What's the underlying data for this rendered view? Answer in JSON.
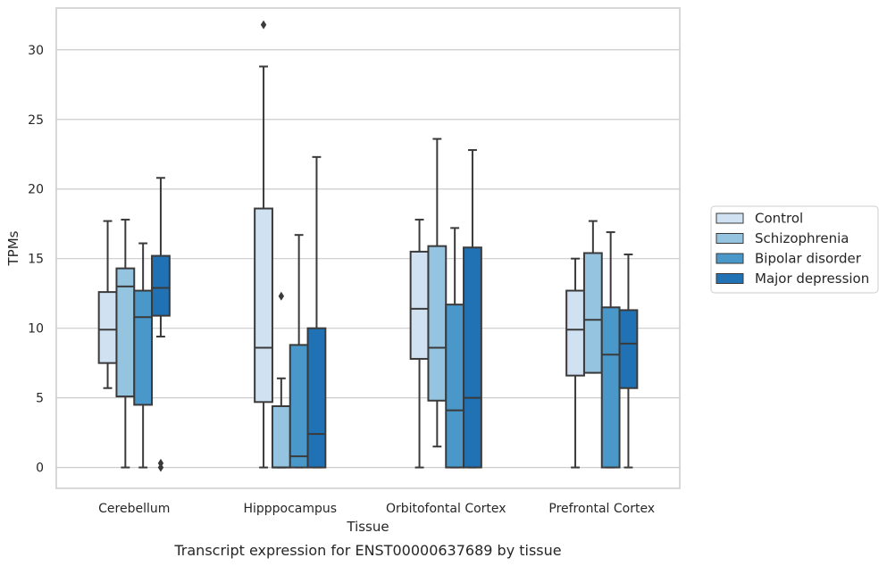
{
  "caption": "Transcript expression for ENST00000637689 by tissue",
  "chart_data": {
    "type": "box",
    "xlabel": "Tissue",
    "ylabel": "TPMs",
    "ylim": [
      -1.5,
      33
    ],
    "yticks": [
      0,
      5,
      10,
      15,
      20,
      25,
      30
    ],
    "grid": "horizontal",
    "legend_position": "right",
    "categories": [
      "Cerebellum",
      "Hipppocampus",
      "Orbitofontal Cortex",
      "Prefrontal Cortex"
    ],
    "series": [
      {
        "name": "Control",
        "color": "#d0e1f2",
        "boxes": [
          {
            "whislo": 5.7,
            "q1": 7.5,
            "med": 9.9,
            "q3": 12.6,
            "whishi": 17.7,
            "fliers": []
          },
          {
            "whislo": 0,
            "q1": 4.7,
            "med": 8.6,
            "q3": 18.6,
            "whishi": 28.8,
            "fliers": [
              31.8
            ]
          },
          {
            "whislo": 0,
            "q1": 7.8,
            "med": 11.4,
            "q3": 15.5,
            "whishi": 17.8,
            "fliers": []
          },
          {
            "whislo": 0,
            "q1": 6.6,
            "med": 9.9,
            "q3": 12.7,
            "whishi": 15.0,
            "fliers": []
          }
        ]
      },
      {
        "name": "Schizophrenia",
        "color": "#94c4df",
        "boxes": [
          {
            "whislo": 0,
            "q1": 5.1,
            "med": 13.0,
            "q3": 14.3,
            "whishi": 17.8,
            "fliers": []
          },
          {
            "whislo": 0,
            "q1": 0,
            "med": 0,
            "q3": 4.4,
            "whishi": 6.4,
            "fliers": [
              12.3
            ]
          },
          {
            "whislo": 1.5,
            "q1": 4.8,
            "med": 8.6,
            "q3": 15.9,
            "whishi": 23.6,
            "fliers": []
          },
          {
            "whislo": 6.8,
            "q1": 6.8,
            "med": 10.6,
            "q3": 15.4,
            "whishi": 17.7,
            "fliers": []
          }
        ]
      },
      {
        "name": "Bipolar disorder",
        "color": "#4a98c9",
        "boxes": [
          {
            "whislo": 0,
            "q1": 4.5,
            "med": 10.8,
            "q3": 12.7,
            "whishi": 16.1,
            "fliers": []
          },
          {
            "whislo": 0,
            "q1": 0,
            "med": 0.8,
            "q3": 8.8,
            "whishi": 16.7,
            "fliers": []
          },
          {
            "whislo": 0,
            "q1": 0,
            "med": 4.1,
            "q3": 11.7,
            "whishi": 17.2,
            "fliers": []
          },
          {
            "whislo": 0,
            "q1": 0,
            "med": 8.1,
            "q3": 11.5,
            "whishi": 16.9,
            "fliers": []
          }
        ]
      },
      {
        "name": "Major depression",
        "color": "#2171b5",
        "boxes": [
          {
            "whislo": 9.4,
            "q1": 10.9,
            "med": 12.9,
            "q3": 15.2,
            "whishi": 20.8,
            "fliers": [
              0.3,
              0.0
            ]
          },
          {
            "whislo": 0,
            "q1": 0,
            "med": 2.4,
            "q3": 10.0,
            "whishi": 22.3,
            "fliers": []
          },
          {
            "whislo": 0,
            "q1": 0,
            "med": 5.0,
            "q3": 15.8,
            "whishi": 22.8,
            "fliers": []
          },
          {
            "whislo": 0,
            "q1": 5.7,
            "med": 8.9,
            "q3": 11.3,
            "whishi": 15.3,
            "fliers": []
          }
        ]
      }
    ]
  }
}
